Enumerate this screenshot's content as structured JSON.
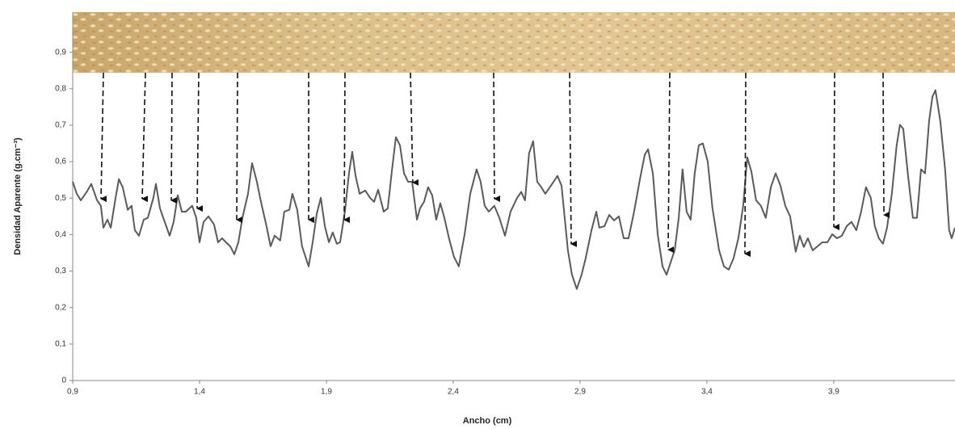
{
  "chart_data": {
    "type": "line",
    "y_label": "Densidad Aparente (g.cm⁻³)",
    "x_label": "Ancho (cm)",
    "xlim": [
      0.9,
      4.378
    ],
    "xticks": [
      {
        "value": 0.9,
        "label": "0,9"
      },
      {
        "value": 1.4,
        "label": "1,4"
      },
      {
        "value": 1.9,
        "label": "1,9"
      },
      {
        "value": 2.4,
        "label": "2,4"
      },
      {
        "value": 2.9,
        "label": "2,9"
      },
      {
        "value": 3.4,
        "label": "3,4"
      },
      {
        "value": 3.9,
        "label": "3,9"
      }
    ],
    "ylim": [
      0,
      1.01
    ],
    "yticks": [
      0,
      {
        "value": 0.1,
        "label": "0,1"
      },
      {
        "value": 0.2,
        "label": "0,2"
      },
      {
        "value": 0.3,
        "label": "0,3"
      },
      {
        "value": 0.4,
        "label": "0,4"
      },
      {
        "value": 0.5,
        "label": "0,5"
      },
      {
        "value": 0.6,
        "label": "0,6"
      },
      {
        "value": 0.7,
        "label": "0,7"
      },
      {
        "value": 0.8,
        "label": "0,8"
      },
      {
        "value": 0.9,
        "label": "0,9"
      }
    ],
    "grid": false,
    "color": "#5a5a5a",
    "x": [
      0.9,
      0.916,
      0.932,
      0.957,
      0.973,
      0.996,
      1.011,
      1.021,
      1.037,
      1.05,
      1.069,
      1.082,
      1.097,
      1.117,
      1.132,
      1.145,
      1.161,
      1.18,
      1.196,
      1.218,
      1.228,
      1.244,
      1.257,
      1.282,
      1.298,
      1.314,
      1.33,
      1.346,
      1.371,
      1.387,
      1.4,
      1.416,
      1.435,
      1.457,
      1.473,
      1.489,
      1.504,
      1.521,
      1.537,
      1.553,
      1.569,
      1.591,
      1.607,
      1.626,
      1.642,
      1.664,
      1.68,
      1.696,
      1.718,
      1.734,
      1.754,
      1.766,
      1.785,
      1.804,
      1.83,
      1.846,
      1.862,
      1.878,
      1.894,
      1.91,
      1.925,
      1.941,
      1.954,
      1.973,
      1.989,
      2.002,
      2.015,
      2.031,
      2.053,
      2.072,
      2.088,
      2.104,
      2.126,
      2.142,
      2.158,
      2.174,
      2.19,
      2.206,
      2.222,
      2.238,
      2.257,
      2.269,
      2.285,
      2.301,
      2.317,
      2.333,
      2.349,
      2.365,
      2.384,
      2.403,
      2.422,
      2.445,
      2.467,
      2.492,
      2.508,
      2.524,
      2.54,
      2.562,
      2.582,
      2.604,
      2.626,
      2.652,
      2.668,
      2.683,
      2.699,
      2.715,
      2.731,
      2.747,
      2.763,
      2.785,
      2.811,
      2.827,
      2.852,
      2.868,
      2.887,
      2.906,
      2.922,
      2.945,
      2.964,
      2.976,
      2.996,
      3.015,
      3.034,
      3.053,
      3.072,
      3.091,
      3.113,
      3.136,
      3.155,
      3.168,
      3.187,
      3.206,
      3.225,
      3.241,
      3.257,
      3.273,
      3.289,
      3.304,
      3.32,
      3.336,
      3.352,
      3.368,
      3.384,
      3.403,
      3.422,
      3.448,
      3.467,
      3.486,
      3.505,
      3.524,
      3.543,
      3.559,
      3.575,
      3.594,
      3.613,
      3.632,
      3.652,
      3.671,
      3.69,
      3.709,
      3.728,
      3.75,
      3.766,
      3.782,
      3.798,
      3.817,
      3.836,
      3.855,
      3.875,
      3.894,
      3.913,
      3.932,
      3.951,
      3.97,
      3.989,
      4.008,
      4.027,
      4.046,
      4.062,
      4.078,
      4.094,
      4.11,
      4.129,
      4.148,
      4.161,
      4.174,
      4.193,
      4.212,
      4.228,
      4.244,
      4.26,
      4.276,
      4.289,
      4.301,
      4.32,
      4.339,
      4.355,
      4.365,
      4.378
    ],
    "values": [
      0.545,
      0.512,
      0.494,
      0.519,
      0.539,
      0.494,
      0.479,
      0.419,
      0.441,
      0.419,
      0.501,
      0.552,
      0.53,
      0.468,
      0.479,
      0.412,
      0.397,
      0.441,
      0.446,
      0.501,
      0.539,
      0.472,
      0.446,
      0.397,
      0.435,
      0.508,
      0.463,
      0.463,
      0.479,
      0.446,
      0.379,
      0.435,
      0.45,
      0.428,
      0.379,
      0.39,
      0.379,
      0.368,
      0.346,
      0.379,
      0.446,
      0.512,
      0.596,
      0.545,
      0.49,
      0.423,
      0.368,
      0.397,
      0.384,
      0.463,
      0.468,
      0.512,
      0.468,
      0.368,
      0.313,
      0.379,
      0.457,
      0.501,
      0.423,
      0.379,
      0.406,
      0.375,
      0.379,
      0.463,
      0.568,
      0.627,
      0.561,
      0.512,
      0.521,
      0.501,
      0.49,
      0.523,
      0.463,
      0.472,
      0.574,
      0.667,
      0.645,
      0.568,
      0.545,
      0.545,
      0.441,
      0.472,
      0.49,
      0.53,
      0.508,
      0.441,
      0.486,
      0.446,
      0.388,
      0.339,
      0.313,
      0.401,
      0.512,
      0.579,
      0.545,
      0.479,
      0.463,
      0.479,
      0.446,
      0.397,
      0.463,
      0.501,
      0.517,
      0.494,
      0.623,
      0.656,
      0.545,
      0.53,
      0.512,
      0.534,
      0.561,
      0.534,
      0.357,
      0.29,
      0.251,
      0.29,
      0.335,
      0.412,
      0.463,
      0.419,
      0.423,
      0.454,
      0.439,
      0.45,
      0.39,
      0.39,
      0.463,
      0.552,
      0.619,
      0.634,
      0.568,
      0.401,
      0.313,
      0.29,
      0.324,
      0.357,
      0.446,
      0.579,
      0.463,
      0.441,
      0.568,
      0.645,
      0.65,
      0.601,
      0.472,
      0.357,
      0.313,
      0.304,
      0.335,
      0.39,
      0.479,
      0.612,
      0.574,
      0.494,
      0.479,
      0.446,
      0.53,
      0.568,
      0.534,
      0.479,
      0.45,
      0.353,
      0.397,
      0.366,
      0.39,
      0.357,
      0.368,
      0.379,
      0.379,
      0.401,
      0.39,
      0.397,
      0.423,
      0.435,
      0.412,
      0.463,
      0.53,
      0.501,
      0.423,
      0.39,
      0.375,
      0.419,
      0.512,
      0.645,
      0.701,
      0.69,
      0.561,
      0.446,
      0.446,
      0.579,
      0.568,
      0.712,
      0.778,
      0.796,
      0.712,
      0.579,
      0.412,
      0.39,
      0.419
    ]
  }
}
